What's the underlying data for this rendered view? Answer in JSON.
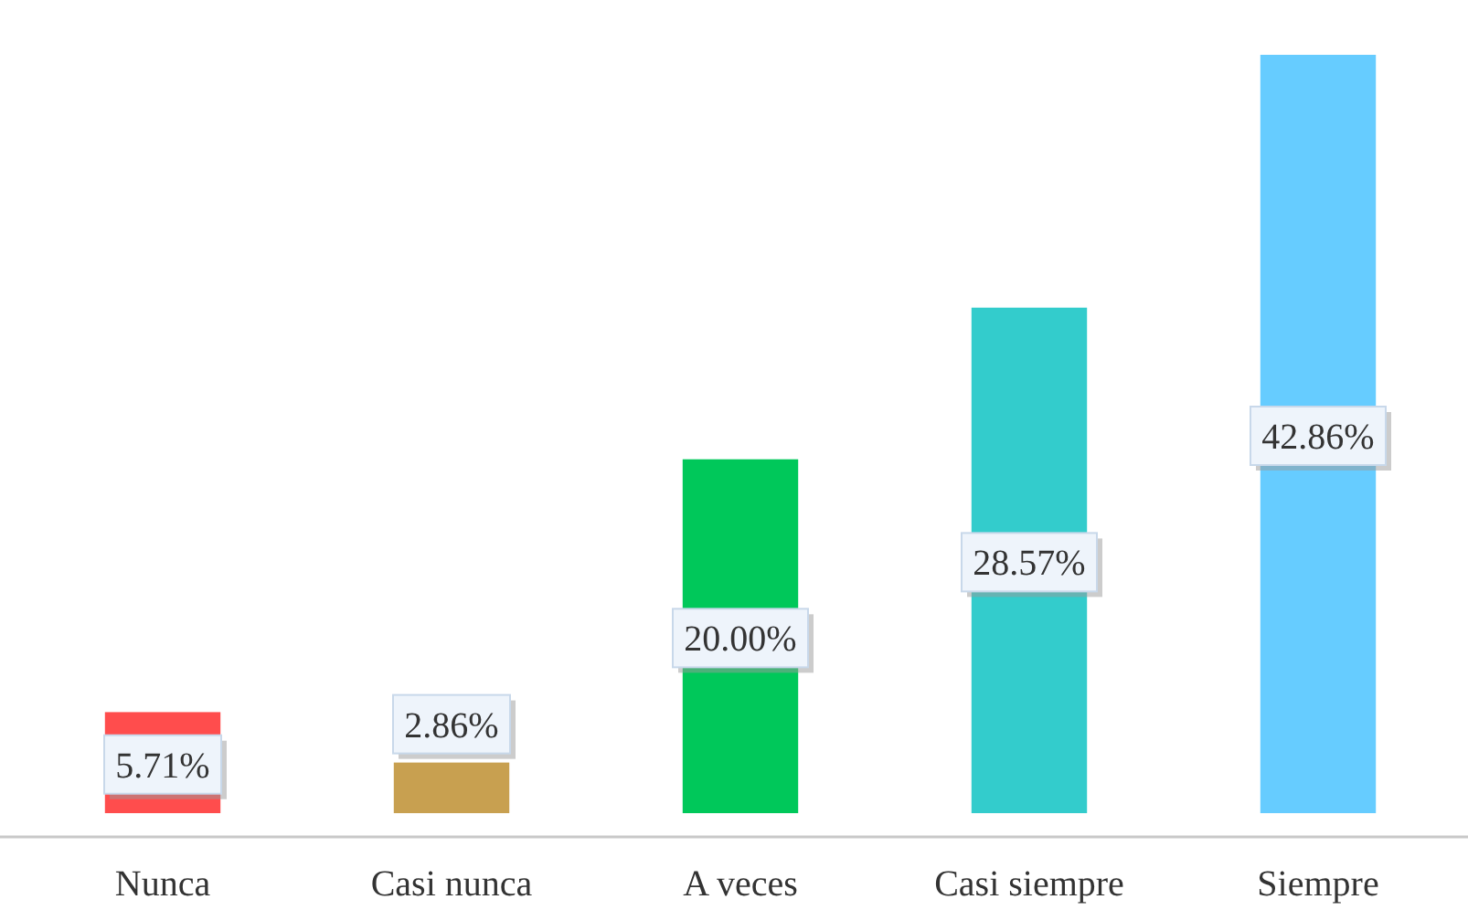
{
  "chart_data": {
    "type": "bar",
    "categories": [
      "Nunca",
      "Casi nunca",
      "A veces",
      "Casi siempre",
      "Siempre"
    ],
    "values": [
      5.71,
      2.86,
      20.0,
      28.57,
      42.86
    ],
    "colors": [
      "#ff4d4d",
      "#c8a050",
      "#00c85a",
      "#33cccc",
      "#66ccff"
    ],
    "value_labels": [
      "5.71%",
      "2.86%",
      "20.00%",
      "28.57%",
      "42.86%"
    ]
  }
}
